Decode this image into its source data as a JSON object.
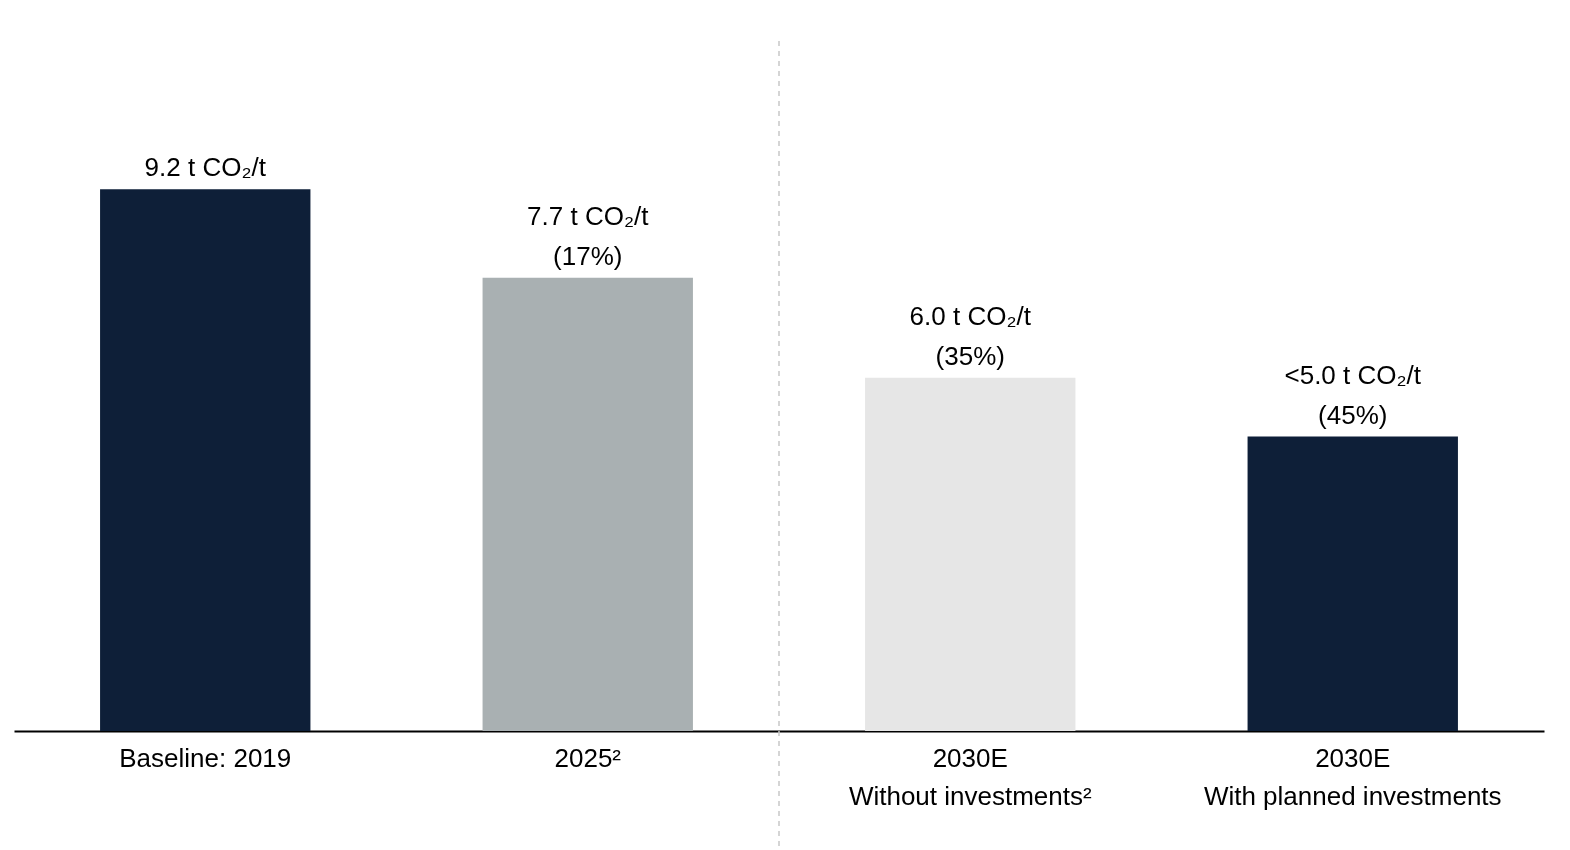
{
  "chart_data": {
    "type": "bar",
    "categories": [
      "Baseline: 2019",
      "2025²",
      "2030E\nWithout investments²",
      "2030E\nWith planned investments"
    ],
    "values": [
      9.2,
      7.7,
      6.0,
      5.0
    ],
    "colors": [
      "#0e1f38",
      "#a9b0b2",
      "#e6e6e6",
      "#0e1f38"
    ],
    "value_labels": [
      "9.2 t CO₂/t",
      "7.7 t CO₂/t\n(17%)",
      "6.0 t CO₂/t\n(35%)",
      "<5.0 t CO₂/t\n(45%)"
    ]
  }
}
